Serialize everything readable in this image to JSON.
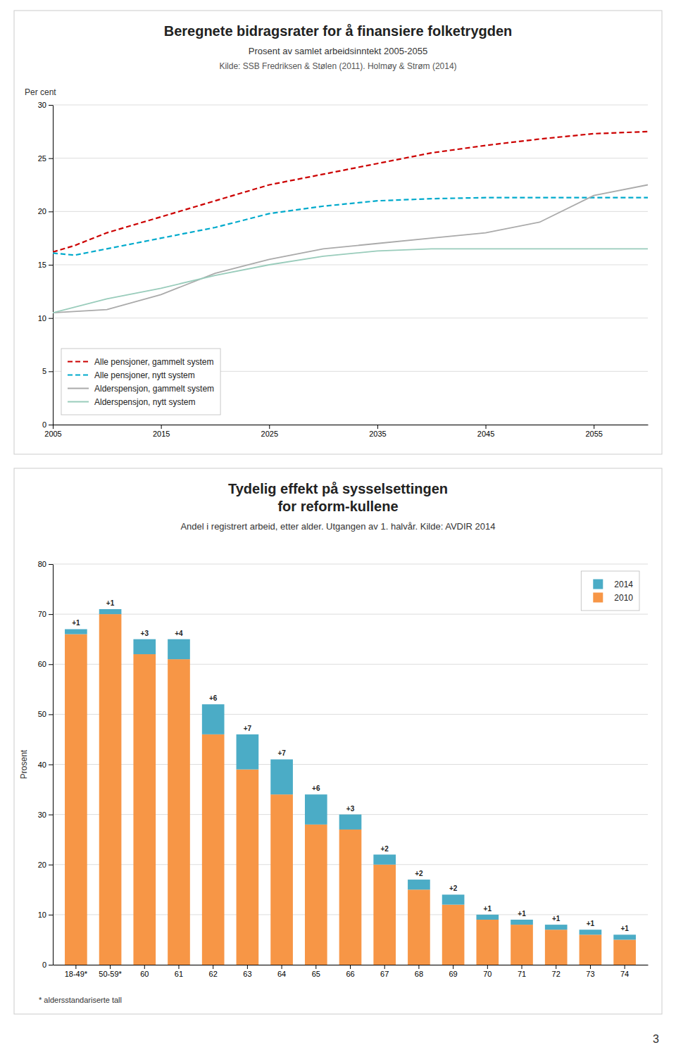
{
  "chart_data": [
    {
      "type": "line",
      "title": "Beregnete bidragsrater for å finansiere folketrygden",
      "subtitle": "Prosent av samlet arbeidsinntekt 2005-2055",
      "source": "Kilde: SSB Fredriksen & Stølen (2011). Holmøy & Strøm (2014)",
      "y_label": "Per cent",
      "xlim": [
        2005,
        2060
      ],
      "ylim": [
        0,
        30
      ],
      "xticks": [
        2005,
        2015,
        2025,
        2035,
        2045,
        2055
      ],
      "yticks": [
        0,
        5,
        10,
        15,
        20,
        25,
        30
      ],
      "grid": true,
      "legend": "lower left",
      "series": [
        {
          "name": "Alle pensjoner, gammelt system",
          "color": "#cc0000",
          "line_style": "dashed",
          "x": [
            2005,
            2007,
            2010,
            2015,
            2020,
            2025,
            2030,
            2035,
            2040,
            2045,
            2050,
            2055,
            2060
          ],
          "values": [
            16.2,
            16.8,
            18.0,
            19.5,
            21.0,
            22.5,
            23.5,
            24.5,
            25.5,
            26.2,
            26.8,
            27.3,
            27.5
          ]
        },
        {
          "name": "Alle pensjoner, nytt system",
          "color": "#00aacc",
          "line_style": "dashed",
          "x": [
            2005,
            2007,
            2010,
            2015,
            2020,
            2025,
            2030,
            2035,
            2040,
            2045,
            2050,
            2055,
            2060
          ],
          "values": [
            16.1,
            15.9,
            16.5,
            17.5,
            18.5,
            19.8,
            20.5,
            21.0,
            21.2,
            21.3,
            21.3,
            21.3,
            21.3
          ]
        },
        {
          "name": "Alderspensjon, gammelt system",
          "color": "#aaaaaa",
          "line_style": "solid",
          "x": [
            2005,
            2010,
            2015,
            2020,
            2025,
            2030,
            2035,
            2040,
            2045,
            2050,
            2055,
            2060
          ],
          "values": [
            10.5,
            10.8,
            12.2,
            14.2,
            15.5,
            16.5,
            17.0,
            17.5,
            18.0,
            19.0,
            21.5,
            22.5
          ]
        },
        {
          "name": "Alderspensjon,  nytt system",
          "color": "#99ccbb",
          "line_style": "solid",
          "x": [
            2005,
            2010,
            2015,
            2020,
            2025,
            2030,
            2035,
            2040,
            2045,
            2050,
            2055,
            2060
          ],
          "values": [
            10.5,
            11.8,
            12.8,
            14.0,
            15.0,
            15.8,
            16.3,
            16.5,
            16.5,
            16.5,
            16.5,
            16.5
          ]
        }
      ]
    },
    {
      "type": "bar",
      "title": "Tydelig effekt på sysselsettingen\nfor reform-kullene",
      "subtitle": "Andel i registrert arbeid, etter alder. Utgangen av 1. halvår. Kilde: AVDIR 2014",
      "y_label": "Prosent",
      "footnote": "* aldersstandariserte tall",
      "stacked": true,
      "categories": [
        "18-49*",
        "50-59*",
        "60",
        "61",
        "62",
        "63",
        "64",
        "65",
        "66",
        "67",
        "68",
        "69",
        "70",
        "71",
        "72",
        "73",
        "74"
      ],
      "ylim": [
        0,
        80
      ],
      "yticks": [
        0,
        10,
        20,
        30,
        40,
        50,
        60,
        70,
        80
      ],
      "grid": true,
      "legend": "upper right",
      "data_labels": true,
      "series": [
        {
          "name": "2010",
          "color": "#f79646",
          "values": [
            66,
            70,
            62,
            61,
            46,
            39,
            34,
            28,
            27,
            20,
            15,
            12,
            9,
            8,
            7,
            6,
            5
          ]
        },
        {
          "name": "2014",
          "color": "#4bacc6",
          "values": [
            1,
            1,
            3,
            4,
            6,
            7,
            7,
            6,
            3,
            2,
            2,
            2,
            1,
            1,
            1,
            1,
            1
          ],
          "value_labels": [
            "+1",
            "+1",
            "+3",
            "+4",
            "+6",
            "+7",
            "+7",
            "+6",
            "+3",
            "+2",
            "+2",
            "+2",
            "+1",
            "+1",
            "+1",
            "+1",
            "+1"
          ]
        }
      ]
    }
  ],
  "page_number": "3"
}
